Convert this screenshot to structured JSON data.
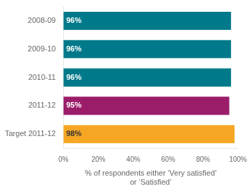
{
  "chart_data": {
    "type": "bar",
    "orientation": "horizontal",
    "categories": [
      "2008-09",
      "2009-10",
      "2010-11",
      "2011-12",
      "Target 2011-12"
    ],
    "values": [
      96,
      96,
      96,
      95,
      98
    ],
    "value_labels": [
      "96%",
      "96%",
      "96%",
      "95%",
      "98%"
    ],
    "data_labels": true,
    "colors": [
      "#007A8A",
      "#007A8A",
      "#007A8A",
      "#9B1D6A",
      "#F5A623"
    ],
    "xlabel": "% of respondents either ‘Very satisfied’\nor ‘Satisfied’",
    "xlim": [
      0,
      100
    ],
    "xticks": [
      {
        "value": 0,
        "label": "0%"
      },
      {
        "value": 20,
        "label": "20%"
      },
      {
        "value": 40,
        "label": "40%"
      },
      {
        "value": 60,
        "label": "60%"
      },
      {
        "value": 80,
        "label": "80%"
      },
      {
        "value": 100,
        "label": "100%"
      }
    ],
    "grid": false
  }
}
